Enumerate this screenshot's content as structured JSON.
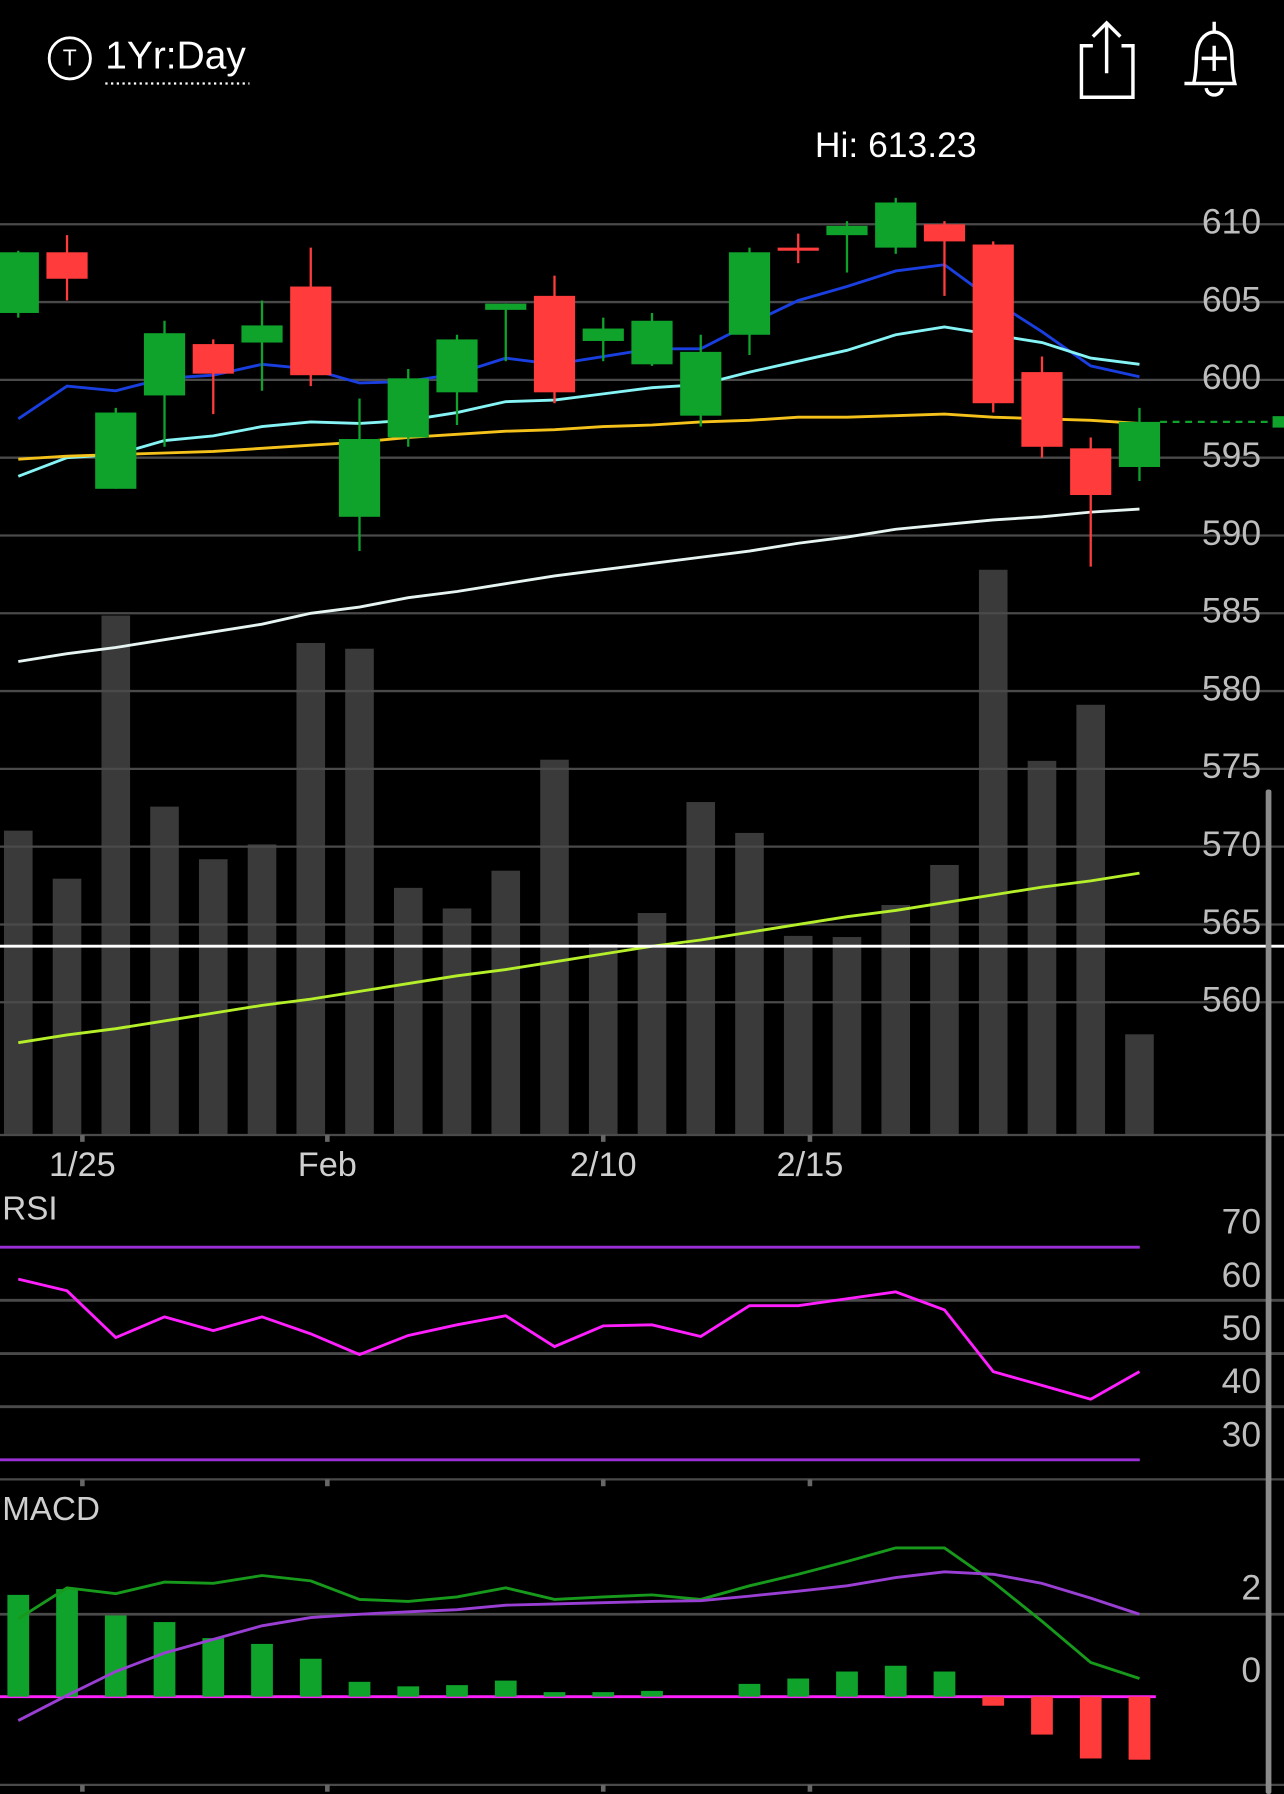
{
  "header": {
    "timeframe": "1Yr:Day"
  },
  "chart_data": [
    {
      "type": "candlestick",
      "annotation": "Hi: 613.23",
      "open": [
        604.3,
        608.2,
        593.0,
        599.0,
        602.3,
        602.4,
        606.0,
        591.2,
        596.3,
        599.2,
        604.5,
        605.4,
        602.5,
        601.0,
        597.7,
        602.9,
        608.5,
        609.3,
        608.5,
        610.0,
        608.7,
        600.5,
        595.6,
        594.4
      ],
      "high": [
        608.3,
        609.3,
        598.2,
        603.8,
        602.6,
        605.1,
        608.5,
        598.8,
        600.7,
        602.9,
        604.9,
        606.7,
        604.0,
        604.3,
        602.9,
        608.5,
        609.4,
        610.2,
        611.7,
        610.2,
        608.9,
        601.5,
        596.3,
        598.2
      ],
      "low": [
        604.0,
        605.1,
        593.0,
        595.7,
        597.8,
        599.3,
        599.6,
        589.0,
        595.7,
        597.1,
        601.2,
        598.5,
        601.2,
        600.9,
        597.0,
        601.6,
        607.5,
        606.9,
        608.1,
        605.4,
        597.9,
        595.0,
        588.0,
        593.5
      ],
      "close": [
        608.2,
        606.5,
        597.9,
        603.0,
        600.4,
        603.5,
        600.3,
        596.2,
        600.1,
        602.6,
        604.9,
        599.2,
        603.3,
        603.8,
        601.8,
        608.2,
        608.3,
        609.9,
        611.4,
        608.9,
        598.5,
        595.7,
        592.6,
        597.3
      ],
      "up_color": "#0fa32c",
      "down_color": "#ff3b3b",
      "overlays": [
        {
          "color": "#1a3fe0",
          "values": [
            597.5,
            599.6,
            599.3,
            600.1,
            600.3,
            601.0,
            600.7,
            599.8,
            599.9,
            600.4,
            601.4,
            601.0,
            601.5,
            602.0,
            602.0,
            603.6,
            605.1,
            606.0,
            607.0,
            607.4,
            605.1,
            603.1,
            600.9,
            600.2
          ]
        },
        {
          "color": "#86f3f5",
          "values": [
            593.8,
            595.0,
            595.2,
            596.1,
            596.4,
            597.0,
            597.3,
            597.2,
            597.4,
            597.9,
            598.6,
            598.7,
            599.1,
            599.5,
            599.7,
            600.5,
            601.2,
            601.9,
            602.9,
            603.4,
            602.9,
            602.4,
            601.4,
            601.0
          ]
        },
        {
          "color": "#f5c21b",
          "values": [
            594.9,
            595.1,
            595.2,
            595.3,
            595.4,
            595.6,
            595.8,
            596.0,
            596.3,
            596.5,
            596.7,
            596.8,
            597.0,
            597.1,
            597.3,
            597.4,
            597.6,
            597.6,
            597.7,
            597.8,
            597.6,
            597.5,
            597.4,
            597.2
          ]
        },
        {
          "color": "#e6f4f2",
          "values": [
            581.9,
            582.4,
            582.8,
            583.3,
            583.8,
            584.3,
            585.0,
            585.4,
            586.0,
            586.4,
            586.9,
            587.4,
            587.8,
            588.2,
            588.6,
            589.0,
            589.5,
            589.9,
            590.4,
            590.7,
            591.0,
            591.2,
            591.5,
            591.7
          ]
        },
        {
          "color": "#b4ef2a",
          "values": [
            557.4,
            557.9,
            558.3,
            558.8,
            559.3,
            559.8,
            560.2,
            560.7,
            561.2,
            561.7,
            562.1,
            562.6,
            563.1,
            563.6,
            564.0,
            564.5,
            565.0,
            565.5,
            565.9,
            566.4,
            566.9,
            567.4,
            567.8,
            568.3
          ]
        }
      ],
      "volume": {
        "color": "#3a3a3a",
        "ylim": [
          0,
          100
        ],
        "values": [
          53.2,
          44.8,
          90.8,
          57.4,
          48.2,
          50.8,
          86.0,
          85.0,
          43.2,
          39.6,
          46.2,
          65.6,
          33.4,
          38.8,
          58.2,
          52.8,
          34.8,
          34.6,
          40.2,
          47.2,
          98.8,
          65.4,
          75.2,
          17.6
        ]
      },
      "ylim": [
        551.47,
        614.12
      ],
      "yticks": [
        560,
        565,
        570,
        575,
        580,
        585,
        590,
        595,
        600,
        605,
        610
      ],
      "xlim": [
        -0.375,
        23.5
      ],
      "xticks": [
        {
          "value": 1.315,
          "label": "1/25"
        },
        {
          "value": 6.34,
          "label": "Feb"
        },
        {
          "value": 12.0,
          "label": "2/10"
        },
        {
          "value": 16.24,
          "label": "2/15"
        }
      ]
    },
    {
      "type": "line",
      "title": "RSI",
      "band_color": "#9a2fd6",
      "series": [
        {
          "color": "#ff1fff",
          "values": [
            64.0,
            61.8,
            53.0,
            56.9,
            54.3,
            56.9,
            53.7,
            49.8,
            53.4,
            55.4,
            57.1,
            51.3,
            55.2,
            55.4,
            53.2,
            59.0,
            59.0,
            60.3,
            61.6,
            58.2,
            46.6,
            44.0,
            41.4,
            46.6
          ]
        }
      ],
      "ylim": [
        25.9,
        79.7
      ],
      "yticks": [
        30,
        40,
        50,
        60,
        70
      ],
      "xlim": [
        -0.375,
        23.5
      ]
    },
    {
      "type": "macd",
      "title": "MACD",
      "zero_color": "#ff1fff",
      "up_color": "#0fa32c",
      "down_color": "#ff3b3b",
      "histogram": [
        2.47,
        2.61,
        1.97,
        1.81,
        1.42,
        1.28,
        0.92,
        0.36,
        0.25,
        0.28,
        0.39,
        0.11,
        0.11,
        0.14,
        0.0,
        0.31,
        0.44,
        0.61,
        0.75,
        0.61,
        -0.22,
        -0.92,
        -1.5,
        -1.53
      ],
      "series": [
        {
          "color": "#17991c",
          "values": [
            1.89,
            2.64,
            2.5,
            2.78,
            2.75,
            2.94,
            2.81,
            2.36,
            2.31,
            2.42,
            2.64,
            2.36,
            2.42,
            2.47,
            2.36,
            2.69,
            2.97,
            3.28,
            3.61,
            3.61,
            2.78,
            1.83,
            0.83,
            0.44
          ]
        },
        {
          "color": "#9a3fd4",
          "values": [
            -0.58,
            0.03,
            0.61,
            1.06,
            1.39,
            1.72,
            1.92,
            2.0,
            2.06,
            2.11,
            2.22,
            2.25,
            2.28,
            2.31,
            2.33,
            2.44,
            2.56,
            2.69,
            2.89,
            3.03,
            2.97,
            2.75,
            2.39,
            2.0
          ]
        }
      ],
      "ylim": [
        -2.14,
        4.94
      ],
      "yticks": [
        0,
        2
      ],
      "xlim": [
        -0.375,
        23.5
      ]
    }
  ]
}
